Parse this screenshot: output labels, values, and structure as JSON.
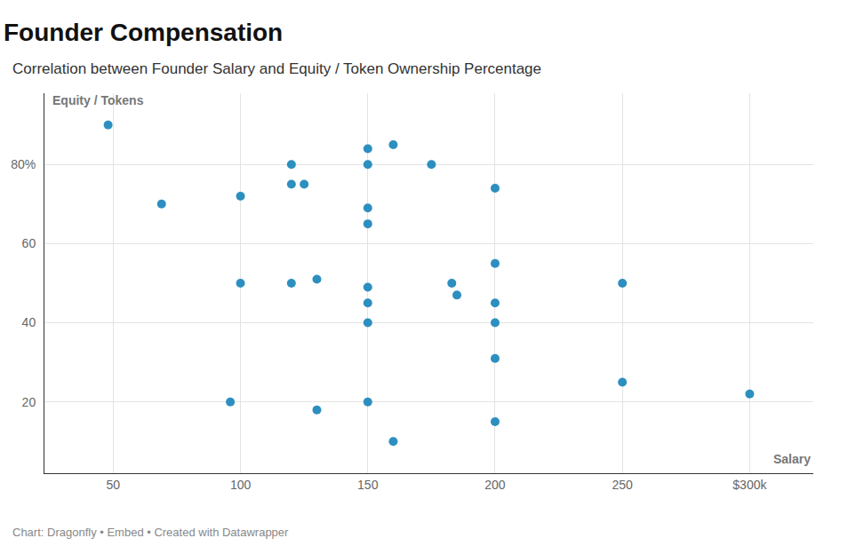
{
  "chart_data": {
    "type": "scatter",
    "title": "Founder Compensation",
    "subtitle": "Correlation between Founder Salary and Equity / Token Ownership Percentage",
    "x_label": "Salary",
    "y_label": "Equity / Tokens",
    "source": "Chart: Dragonfly • Embed • Created with Datawrapper",
    "color": "#2d8fc0",
    "marker": "circle",
    "grid": true,
    "x": [
      48,
      69,
      100,
      120,
      120,
      125,
      150,
      160,
      150,
      175,
      200,
      150,
      150,
      200,
      100,
      120,
      130,
      150,
      183,
      185,
      250,
      150,
      200,
      150,
      200,
      200,
      250,
      300,
      96,
      130,
      150,
      200,
      160
    ],
    "values": [
      90,
      70,
      72,
      80,
      75,
      75,
      84,
      85,
      80,
      80,
      74,
      69,
      65,
      55,
      50,
      50,
      51,
      49,
      50,
      47,
      50,
      45,
      45,
      40,
      40,
      31,
      25,
      22,
      20,
      18,
      20,
      15,
      10
    ],
    "xlim": [
      23,
      325
    ],
    "ylim": [
      2,
      98
    ],
    "xticks": [
      50,
      100,
      150,
      200,
      250,
      {
        "value": 300,
        "label": "$300k"
      }
    ],
    "yticks": [
      20,
      40,
      60,
      {
        "value": 80,
        "label": "80%"
      }
    ]
  }
}
